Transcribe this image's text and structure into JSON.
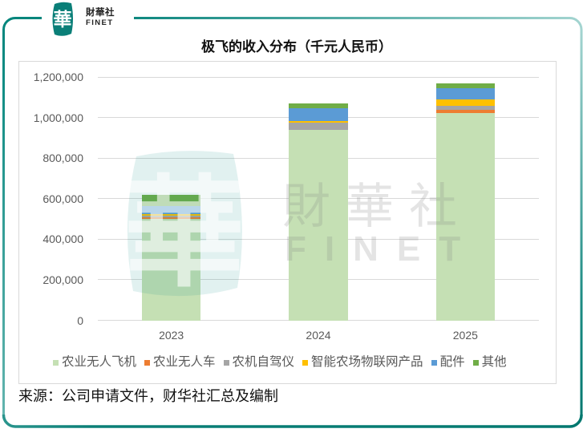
{
  "logo": {
    "mark": "華",
    "name_cn": "財華社",
    "name_en": "FINET",
    "color": "#0a7f78"
  },
  "watermark": {
    "mark": "華",
    "name_cn": "財華社",
    "name_en": "FINET"
  },
  "source": "来源：公司申请文件，财华社汇总及编制",
  "chart_data": {
    "type": "bar",
    "stacked": true,
    "title": "极飞的收入分布（千元人民币）",
    "xlabel": "",
    "ylabel": "",
    "categories": [
      "2023",
      "2024",
      "2025"
    ],
    "series": [
      {
        "name": "农业无人飞机",
        "color": "#C5E0B4",
        "values": [
          501000,
          938000,
          1021000
        ]
      },
      {
        "name": "农业无人车",
        "color": "#ED7D31",
        "values": [
          7000,
          1000,
          18500
        ]
      },
      {
        "name": "农机自驾仪",
        "color": "#A5A5A5",
        "values": [
          9000,
          36000,
          17000
        ]
      },
      {
        "name": "智能农场物联网产品",
        "color": "#FFC000",
        "values": [
          7000,
          8000,
          34500
        ]
      },
      {
        "name": "配件",
        "color": "#5B9BD5",
        "values": [
          40000,
          61000,
          55500
        ]
      },
      {
        "name": "其他",
        "color": "#70AD47",
        "values": [
          54000,
          24000,
          21000
        ]
      }
    ],
    "ylim": [
      0,
      1200000
    ],
    "yticks": [
      0,
      200000,
      400000,
      600000,
      800000,
      1000000,
      1200000
    ],
    "ytick_labels": [
      "0",
      "200,000",
      "400,000",
      "600,000",
      "800,000",
      "1,000,000",
      "1,200,000"
    ],
    "grid": true,
    "legend_position": "bottom"
  }
}
